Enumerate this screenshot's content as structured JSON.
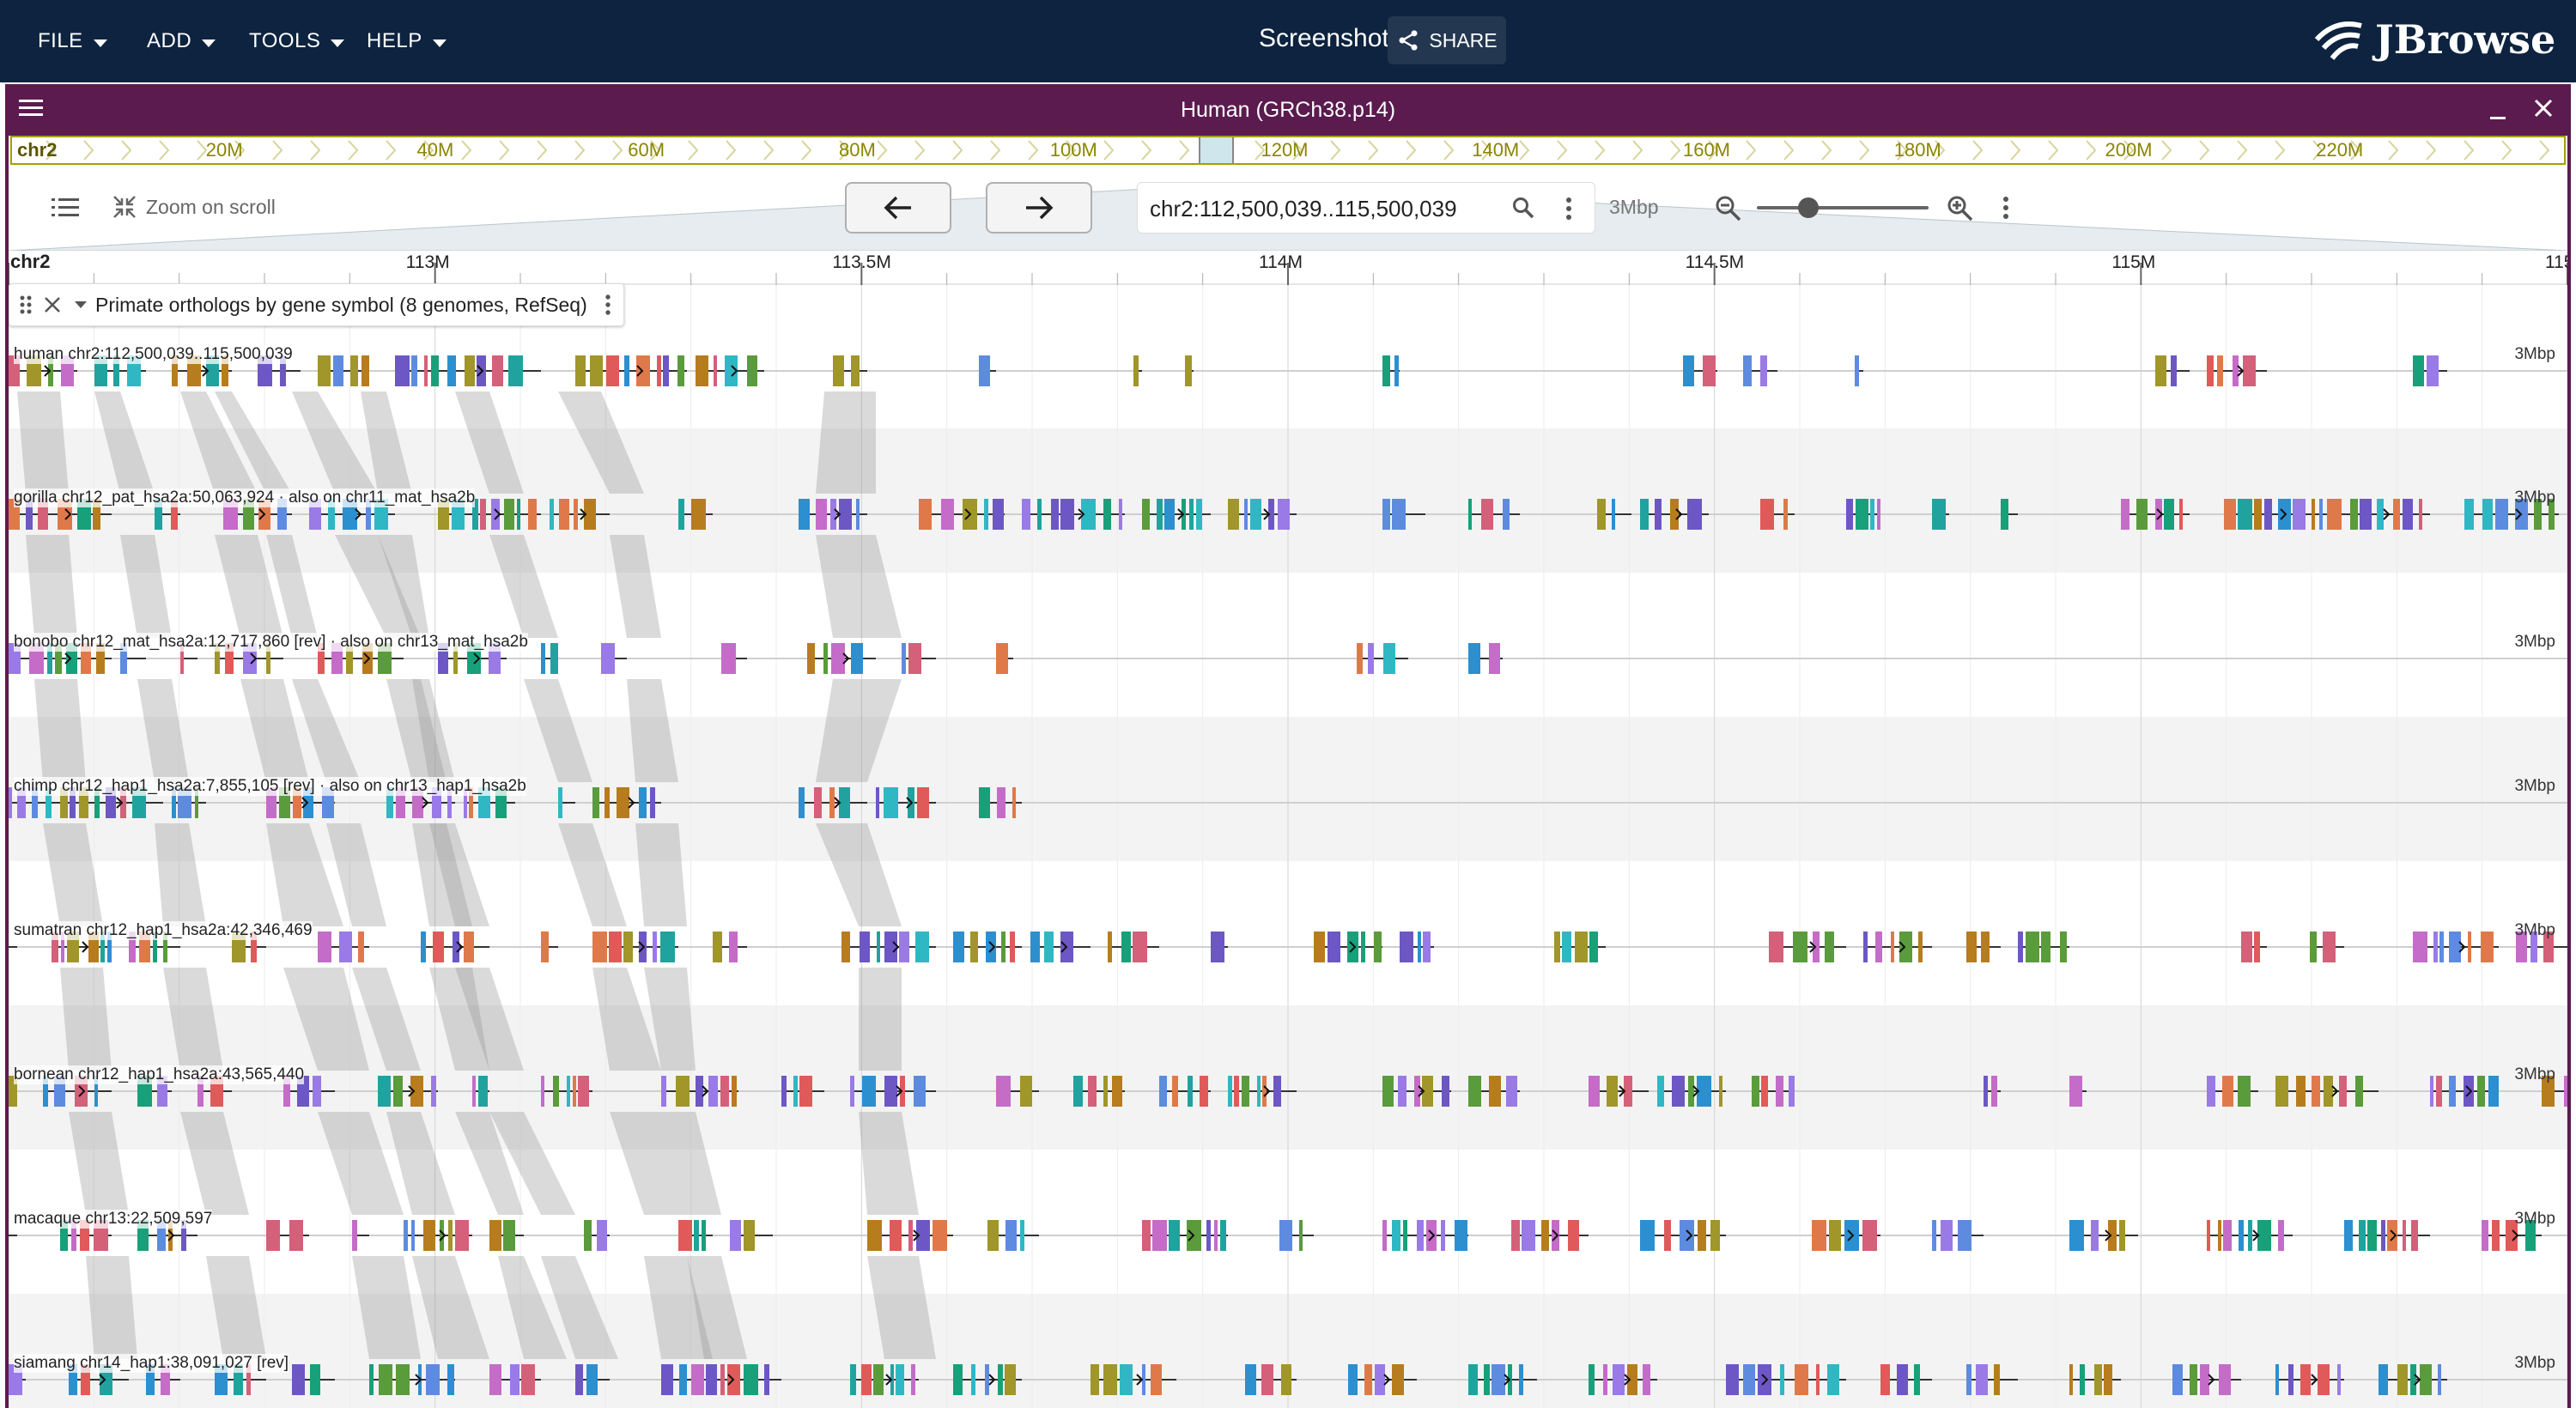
{
  "menu": [
    {
      "id": "file",
      "label": "FILE"
    },
    {
      "id": "add",
      "label": "ADD"
    },
    {
      "id": "tools",
      "label": "TOOLS"
    },
    {
      "id": "help",
      "label": "HELP"
    }
  ],
  "session": {
    "name": "Screenshot",
    "share_label": "SHARE"
  },
  "brand": {
    "name": "JBrowse"
  },
  "view": {
    "title": "Human (GRCh38.p14)"
  },
  "overview": {
    "refname": "chr2",
    "ticks": [
      {
        "label": "20M",
        "value": 20
      },
      {
        "label": "40M",
        "value": 40
      },
      {
        "label": "60M",
        "value": 60
      },
      {
        "label": "80M",
        "value": 80
      },
      {
        "label": "100M",
        "value": 100
      },
      {
        "label": "120M",
        "value": 120
      },
      {
        "label": "140M",
        "value": 140
      },
      {
        "label": "160M",
        "value": 160
      },
      {
        "label": "180M",
        "value": 180
      },
      {
        "label": "200M",
        "value": 200
      },
      {
        "label": "220M",
        "value": 220
      }
    ],
    "highlight_mbp": [
      112.5,
      115.5
    ]
  },
  "controls": {
    "zoom_on_scroll": "Zoom on scroll",
    "location": "chr2:112,500,039..115,500,039",
    "span": "3Mbp",
    "zoom_level": 0.3
  },
  "ruler": {
    "refname": "chr2",
    "ticks": [
      {
        "label": "113M",
        "value": 113
      },
      {
        "label": "113.5M",
        "value": 113.5
      },
      {
        "label": "114M",
        "value": 114
      },
      {
        "label": "114.5M",
        "value": 114.5
      },
      {
        "label": "115M",
        "value": 115
      }
    ],
    "edge_label": "115"
  },
  "track": {
    "name": "Primate orthologs by gene symbol (8 genomes, RefSeq)"
  },
  "genomes": [
    {
      "label": "human chr2:112,500,039..115,500,039",
      "span": "3Mbp"
    },
    {
      "label": "gorilla chr12_pat_hsa2a:50,063,924 · also on chr11_mat_hsa2b",
      "span": "3Mbp"
    },
    {
      "label": "bonobo chr12_mat_hsa2a:12,717,860 [rev] · also on chr13_mat_hsa2b",
      "span": "3Mbp"
    },
    {
      "label": "chimp chr12_hap1_hsa2a:7,855,105 [rev] · also on chr13_hap1_hsa2b",
      "span": "3Mbp"
    },
    {
      "label": "sumatran chr12_hap1_hsa2a:42,346,469",
      "span": "3Mbp"
    },
    {
      "label": "bornean chr12_hap1_hsa2a:43,565,440",
      "span": "3Mbp"
    },
    {
      "label": "macaque chr13:22,509,597",
      "span": "3Mbp"
    },
    {
      "label": "siamang chr14_hap1:38,091,027 [rev]",
      "span": "3Mbp"
    }
  ],
  "colors": {
    "appbar": "#0d233f",
    "view_header": "#5b1b4f",
    "overview_accent": "#a4a000"
  }
}
